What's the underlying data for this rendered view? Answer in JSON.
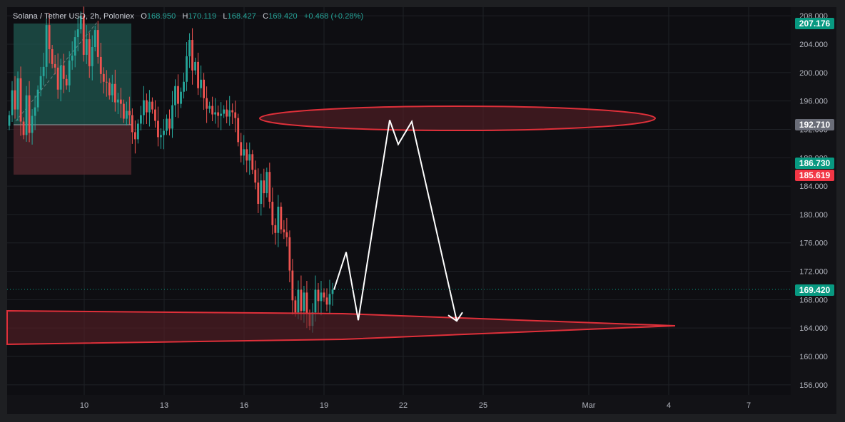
{
  "legend": {
    "symbol": "Solana / Tether USD, 2h, Poloniex",
    "o_label": "O",
    "o_value": "168.950",
    "h_label": "H",
    "h_value": "170.119",
    "l_label": "L",
    "l_value": "168.427",
    "c_label": "C",
    "c_value": "169.420",
    "change": "+0.468 (+0.28%)"
  },
  "badges": {
    "top_price": "207.176",
    "resistance": "192.710",
    "target_up": "186.730",
    "target_down": "185.619",
    "last_price": "169.420"
  },
  "colors": {
    "up": "#26a69a",
    "down": "#ef5350",
    "zone_fill": "#5a1f27",
    "zone_stroke": "#e0303a",
    "path": "#ffffff",
    "badge_green": "#089981",
    "badge_red": "#f23645",
    "badge_grey": "#6a6d78"
  },
  "chart_data": {
    "type": "candlestick",
    "ylim": [
      153.5,
      209
    ],
    "y_ticks": [
      "156.000",
      "160.000",
      "164.000",
      "168.000",
      "172.000",
      "176.000",
      "180.000",
      "184.000",
      "188.000",
      "192.000",
      "196.000",
      "200.000",
      "204.000",
      "208.000"
    ],
    "x_ticks": [
      "10",
      "13",
      "16",
      "19",
      "22",
      "25",
      "Mar",
      "4",
      "7"
    ],
    "candles": [
      [
        192.5,
        194.0
      ],
      [
        194.0,
        197.5
      ],
      [
        197.5,
        194.8
      ],
      [
        194.8,
        199.2
      ],
      [
        199.2,
        193.1
      ],
      [
        193.1,
        191.2
      ],
      [
        191.2,
        196.8
      ],
      [
        196.8,
        191.5
      ],
      [
        191.5,
        193.9
      ],
      [
        193.9,
        195.1
      ],
      [
        195.1,
        197.6
      ],
      [
        197.6,
        199.5
      ],
      [
        199.5,
        200.8
      ],
      [
        200.8,
        206.7
      ],
      [
        206.7,
        203.3
      ],
      [
        203.3,
        201.2
      ],
      [
        201.2,
        200.7
      ],
      [
        200.7,
        197.6
      ],
      [
        197.6,
        201.0
      ],
      [
        201.0,
        199.1
      ],
      [
        199.1,
        198.2
      ],
      [
        198.2,
        201.7
      ],
      [
        201.7,
        202.4
      ],
      [
        202.4,
        205.0
      ],
      [
        205.0,
        206.1
      ],
      [
        206.1,
        208.0
      ],
      [
        208.0,
        202.5
      ],
      [
        202.5,
        204.7
      ],
      [
        204.7,
        200.9
      ],
      [
        200.9,
        203.6
      ],
      [
        203.6,
        206.0
      ],
      [
        206.0,
        202.2
      ],
      [
        202.2,
        199.8
      ],
      [
        199.8,
        198.7
      ],
      [
        198.7,
        198.6
      ],
      [
        198.6,
        196.8
      ],
      [
        196.8,
        198.4
      ],
      [
        198.4,
        195.8
      ],
      [
        195.8,
        196.2
      ],
      [
        196.2,
        195.6
      ],
      [
        195.6,
        193.5
      ],
      [
        193.5,
        194.6
      ],
      [
        194.6,
        194.0
      ],
      [
        194.0,
        191.6
      ],
      [
        191.6,
        190.6
      ],
      [
        190.6,
        192.8
      ],
      [
        192.8,
        194.0
      ],
      [
        194.0,
        196.1
      ],
      [
        196.1,
        194.4
      ],
      [
        194.4,
        195.9
      ],
      [
        195.9,
        194.8
      ],
      [
        194.8,
        193.2
      ],
      [
        193.2,
        190.9
      ],
      [
        190.9,
        191.2
      ],
      [
        191.2,
        191.8
      ],
      [
        191.8,
        193.5
      ],
      [
        193.5,
        192.1
      ],
      [
        192.1,
        195.4
      ],
      [
        195.4,
        198.1
      ],
      [
        198.1,
        195.6
      ],
      [
        195.6,
        197.3
      ],
      [
        197.3,
        198.7
      ],
      [
        198.7,
        202.3
      ],
      [
        202.3,
        204.6
      ],
      [
        204.6,
        200.3
      ],
      [
        200.3,
        201.5
      ],
      [
        201.5,
        197.8
      ],
      [
        197.8,
        199.0
      ],
      [
        199.0,
        196.4
      ],
      [
        196.4,
        194.9
      ],
      [
        194.9,
        195.3
      ],
      [
        195.3,
        194.1
      ],
      [
        194.1,
        194.4
      ],
      [
        194.4,
        193.9
      ],
      [
        193.9,
        194.2
      ],
      [
        194.2,
        194.8
      ],
      [
        194.8,
        193.8
      ],
      [
        193.8,
        194.7
      ],
      [
        194.7,
        194.4
      ],
      [
        194.4,
        193.6
      ],
      [
        193.6,
        190.2
      ],
      [
        190.2,
        188.3
      ],
      [
        188.3,
        189.2
      ],
      [
        189.2,
        187.6
      ],
      [
        187.6,
        188.5
      ],
      [
        188.5,
        186.3
      ],
      [
        186.3,
        184.5
      ],
      [
        184.5,
        181.5
      ],
      [
        181.5,
        184.8
      ],
      [
        184.8,
        183.0
      ],
      [
        183.0,
        186.0
      ],
      [
        186.0,
        181.8
      ],
      [
        181.8,
        178.5
      ],
      [
        178.5,
        177.4
      ],
      [
        177.4,
        181.1
      ],
      [
        181.1,
        177.9
      ],
      [
        177.9,
        177.5
      ],
      [
        177.5,
        176.8
      ],
      [
        176.8,
        172.1
      ],
      [
        172.1,
        167.9
      ],
      [
        167.9,
        166.2
      ],
      [
        166.2,
        169.4
      ],
      [
        169.4,
        166.4
      ],
      [
        166.4,
        169.0
      ],
      [
        169.0,
        166.0
      ],
      [
        166.0,
        164.3
      ],
      [
        164.3,
        166.2
      ],
      [
        166.2,
        169.4
      ],
      [
        169.4,
        167.8
      ],
      [
        167.8,
        169.0
      ],
      [
        169.0,
        168.3
      ],
      [
        168.3,
        167.3
      ],
      [
        167.3,
        168.8
      ],
      [
        168.8,
        169.42
      ]
    ],
    "zones": [
      {
        "name": "resistance-zone",
        "y_center": 193.8
      },
      {
        "name": "support-zone",
        "y_center": 164.3
      }
    ],
    "projection": [
      169.4,
      174.7,
      165.1,
      193.3,
      189.9,
      193.1,
      165.0
    ]
  }
}
